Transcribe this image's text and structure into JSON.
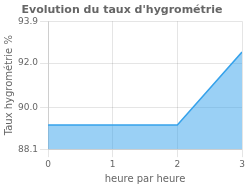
{
  "chart_data": {
    "type": "area",
    "title": "Evolution du taux d'hygrométrie",
    "xlabel": "heure par heure",
    "ylabel": "Taux hygrométrie %",
    "x": [
      0,
      1,
      2,
      3
    ],
    "values": [
      89.2,
      89.2,
      89.2,
      92.5
    ],
    "xlim": [
      0,
      3
    ],
    "ylim": [
      88.1,
      93.9
    ],
    "xticks": [
      0,
      1,
      2,
      3
    ],
    "yticks": [
      88.1,
      {
        "value": 90,
        "label": "90.0"
      },
      {
        "value": 92,
        "label": "92.0"
      },
      93.9
    ],
    "grid": true
  }
}
